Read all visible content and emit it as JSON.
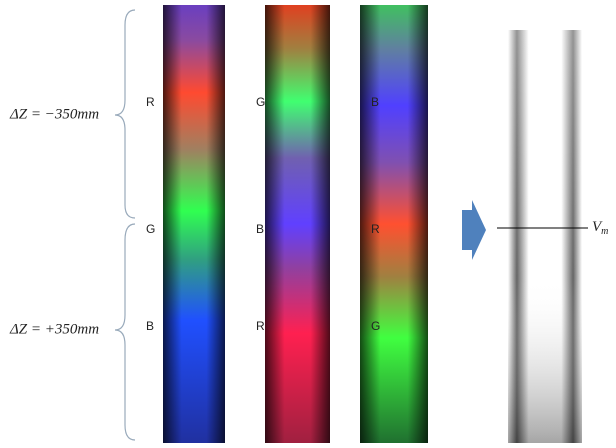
{
  "annotations": {
    "dz_top": "ΔZ = −350mm",
    "dz_bottom": "ΔZ = +350mm",
    "vm": {
      "base": "V",
      "sub": "m"
    }
  },
  "columns": [
    [
      "R",
      "G",
      "B"
    ],
    [
      "G",
      "B",
      "R"
    ],
    [
      "B",
      "R",
      "G"
    ]
  ]
}
